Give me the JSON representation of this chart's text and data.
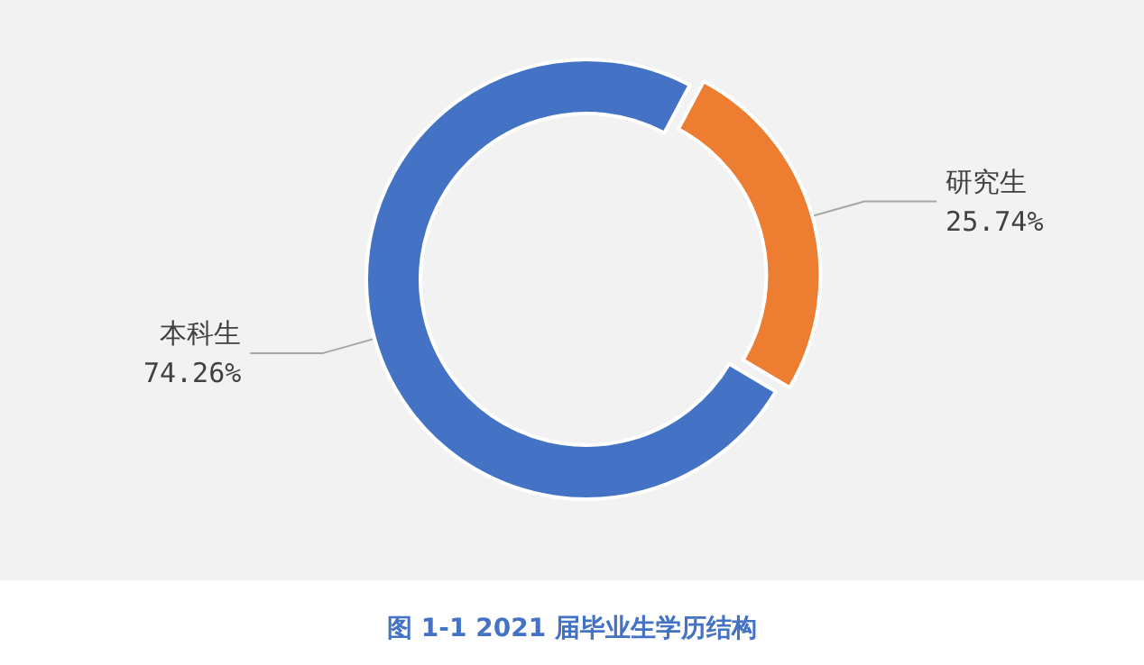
{
  "chart_data": {
    "type": "donut",
    "title": "图 1-1 2021 届毕业生学历结构",
    "categories": [
      "研究生",
      "本科生"
    ],
    "values": [
      25.74,
      74.26
    ],
    "value_labels": [
      "25.74%",
      "74.26%"
    ],
    "colors": [
      "#ed7d31",
      "#4472c4"
    ],
    "legend": false
  }
}
